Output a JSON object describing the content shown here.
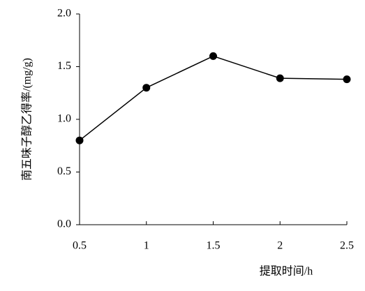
{
  "chart_data": {
    "type": "line",
    "x_label": "提取时间/h",
    "y_label": "南五味子醇乙得率/(mg/g)",
    "x": [
      0.5,
      1,
      1.5,
      2,
      2.5
    ],
    "values": [
      0.8,
      1.3,
      1.6,
      1.39,
      1.38
    ],
    "color": "#000000",
    "xlim": [
      0.5,
      2.5
    ],
    "xticks": [
      0.5,
      1,
      1.5,
      2,
      2.5
    ],
    "ylim": [
      0,
      2
    ],
    "yticks": [
      {
        "value": 0,
        "label": "0.0"
      },
      0.5,
      {
        "value": 1,
        "label": "1.0"
      },
      1.5,
      {
        "value": 2,
        "label": "2.0"
      }
    ],
    "grid": false
  }
}
